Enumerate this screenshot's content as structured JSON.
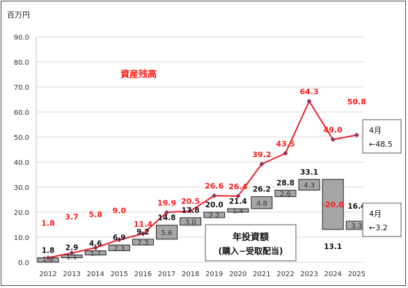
{
  "chart_data": {
    "type": "line+waterfall",
    "unit_label": "百万円",
    "y_ticks": [
      "0.0",
      "10.0",
      "20.0",
      "30.0",
      "40.0",
      "50.0",
      "60.0",
      "70.0",
      "80.0",
      "90.0"
    ],
    "ylim": [
      0,
      90
    ],
    "categories": [
      "2012",
      "2013",
      "2014",
      "2015",
      "2016",
      "2017",
      "2018",
      "2019",
      "2020",
      "2021",
      "2022",
      "2023",
      "2024",
      "2025"
    ],
    "line_series": {
      "name": "資産残高",
      "color": "#e8202a",
      "values": [
        1.8,
        3.7,
        5.8,
        9.0,
        11.4,
        19.9,
        20.5,
        26.6,
        26.4,
        39.2,
        43.5,
        64.3,
        49.0,
        50.8
      ],
      "labels": [
        "1.8",
        "3.7",
        "5.8",
        "9.0",
        "11.4",
        "19.9",
        "20.5",
        "26.6",
        "26.4",
        "39.2",
        "43.5",
        "64.3",
        "49.0",
        "50.8"
      ]
    },
    "waterfall_series": {
      "name_line1": "年投資額",
      "name_line2": "(購入−受取配当)",
      "color": "#a6a6a6",
      "increments": [
        1.8,
        1.1,
        1.7,
        2.3,
        2.3,
        5.6,
        3.0,
        2.2,
        1.4,
        4.8,
        2.6,
        4.3,
        -20.0,
        3.3
      ],
      "increment_labels": [
        "1.8",
        "1.1",
        "1.7",
        "2.3",
        "2.3",
        "5.6",
        "3.0",
        "2.2",
        "1.4",
        "4.8",
        "2.6",
        "4.3",
        "-20.0",
        "3.3"
      ],
      "cumulative_labels": [
        "1.8",
        "2.9",
        "4.6",
        "6.9",
        "9.2",
        "14.8",
        "17.8",
        "20.0",
        "21.4",
        "26.2",
        "28.8",
        "33.1",
        "13.1",
        "16.4"
      ]
    },
    "callouts": [
      {
        "line1": "4月",
        "line2": "←48.5"
      },
      {
        "line1": "4月",
        "line2": "←3.2"
      }
    ],
    "grid": true
  }
}
